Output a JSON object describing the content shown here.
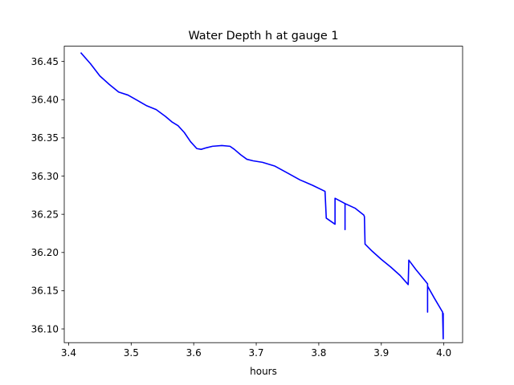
{
  "chart_data": {
    "type": "line",
    "title": "Water Depth h at gauge 1",
    "xlabel": "hours",
    "ylabel": "",
    "xlim": [
      3.393,
      4.03
    ],
    "ylim": [
      36.082,
      36.47
    ],
    "xticks": [
      3.4,
      3.5,
      3.6,
      3.7,
      3.8,
      3.9,
      4.0
    ],
    "xtick_labels": [
      "3.4",
      "3.5",
      "3.6",
      "3.7",
      "3.8",
      "3.9",
      "4.0"
    ],
    "yticks": [
      36.1,
      36.15,
      36.2,
      36.25,
      36.3,
      36.35,
      36.4,
      36.45
    ],
    "ytick_labels": [
      "36.10",
      "36.15",
      "36.20",
      "36.25",
      "36.30",
      "36.35",
      "36.40",
      "36.45"
    ],
    "grid": false,
    "series": [
      {
        "color": "#0000ff",
        "x": [
          3.42,
          3.435,
          3.45,
          3.465,
          3.48,
          3.495,
          3.51,
          3.525,
          3.54,
          3.555,
          3.565,
          3.575,
          3.585,
          3.595,
          3.605,
          3.612,
          3.62,
          3.63,
          3.645,
          3.658,
          3.665,
          3.675,
          3.685,
          3.695,
          3.71,
          3.73,
          3.75,
          3.77,
          3.79,
          3.81,
          3.812,
          3.826,
          3.826,
          3.842,
          3.842,
          3.842,
          3.858,
          3.872,
          3.873,
          3.874,
          3.885,
          3.9,
          3.915,
          3.93,
          3.943,
          3.944,
          3.955,
          3.97,
          3.974,
          3.974,
          3.974,
          3.985,
          3.998,
          3.999,
          3.999
        ],
        "y": [
          36.461,
          36.447,
          36.431,
          36.42,
          36.41,
          36.406,
          36.399,
          36.392,
          36.387,
          36.378,
          36.371,
          36.366,
          36.357,
          36.345,
          36.336,
          36.335,
          36.337,
          36.339,
          36.34,
          36.339,
          36.335,
          36.328,
          36.322,
          36.32,
          36.318,
          36.313,
          36.304,
          36.295,
          36.288,
          36.28,
          36.245,
          36.237,
          36.271,
          36.264,
          36.23,
          36.264,
          36.258,
          36.249,
          36.247,
          36.211,
          36.202,
          36.191,
          36.181,
          36.17,
          36.158,
          36.19,
          36.178,
          36.163,
          36.159,
          36.122,
          36.156,
          36.14,
          36.122,
          36.087,
          36.12
        ]
      }
    ]
  }
}
